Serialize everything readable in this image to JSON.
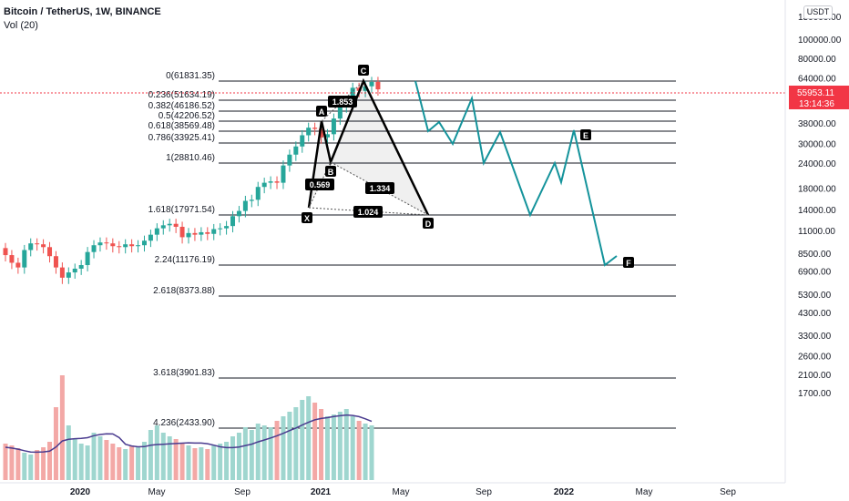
{
  "header": {
    "title": "Bitcoin / TetherUS, 1W, BINANCE",
    "volume_label": "Vol (20)"
  },
  "currency": "USDT",
  "price_axis": {
    "ticks": [
      "130000.00",
      "100000.00",
      "80000.00",
      "64000.00",
      "50000.00",
      "38000.00",
      "30000.00",
      "24000.00",
      "18000.00",
      "14000.00",
      "11000.00",
      "8500.00",
      "6900.00",
      "5300.00",
      "4300.00",
      "3300.00",
      "2600.00",
      "2100.00",
      "1700.00"
    ],
    "current_price": "55953.11",
    "countdown": "13:14:36",
    "current_color": "#f23645"
  },
  "time_axis": {
    "ticks": [
      "2020",
      "May",
      "Sep",
      "2021",
      "May",
      "Sep",
      "2022",
      "May",
      "Sep"
    ]
  },
  "fib_levels": [
    {
      "label": "0(61831.35)"
    },
    {
      "label": "0.236(51634.19)"
    },
    {
      "label": "0.382(46186.52)"
    },
    {
      "label": "0.5(42206.52)"
    },
    {
      "label": "0.618(38569.48)"
    },
    {
      "label": "0.786(33925.41)"
    },
    {
      "label": "1(28810.46)"
    },
    {
      "label": "1.618(17971.54)"
    },
    {
      "label": "2.24(11176.19)"
    },
    {
      "label": "2.618(8373.88)"
    },
    {
      "label": "3.618(3901.83)"
    },
    {
      "label": "4.236(2433.90)"
    }
  ],
  "pattern": {
    "points": [
      "X",
      "A",
      "B",
      "C",
      "D"
    ],
    "ratios": [
      "0.569",
      "1.853",
      "1.334",
      "1.024"
    ]
  },
  "projection": {
    "labels": [
      "E",
      "F"
    ],
    "color": "#14939b"
  },
  "chart_data": {
    "type": "candlestick",
    "symbol": "Bitcoin / TetherUS, 1W, BINANCE",
    "indicator": "Vol (20)",
    "y_scale": "log",
    "ylim": [
      1500,
      140000
    ],
    "up_color": "#26a69a",
    "down_color": "#ef5350",
    "weekly_closes_approx": [
      8300,
      7600,
      7200,
      8800,
      9500,
      9400,
      9100,
      8200,
      7200,
      6400,
      6800,
      7100,
      7400,
      8600,
      9300,
      9600,
      9500,
      9200,
      9100,
      9400,
      9200,
      9300,
      9800,
      10500,
      11300,
      11700,
      11900,
      11500,
      10200,
      10700,
      10500,
      10800,
      10600,
      11200,
      11300,
      11600,
      13000,
      13800,
      15500,
      15700,
      18200,
      19100,
      19400,
      19100,
      23300,
      26400,
      29000,
      33000,
      36000,
      35500,
      32200,
      33400,
      40000,
      46000,
      49000,
      57000,
      55000,
      58000,
      61000,
      56000
    ]
  }
}
